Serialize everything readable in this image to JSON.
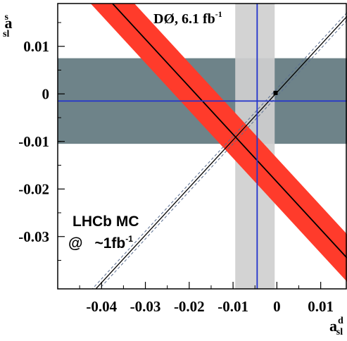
{
  "chart_data": {
    "type": "scatter",
    "title": "DØ, 6.1 fb",
    "title_sup": "-1",
    "ylabel": "a",
    "ylabel_sup": "s",
    "ylabel_sub": "sl",
    "xlabel": "a",
    "xlabel_sup": "d",
    "xlabel_sub": "sl",
    "xlim": [
      -0.05,
      0.016
    ],
    "ylim": [
      -0.041,
      0.019
    ],
    "x_ticks": [
      -0.04,
      -0.03,
      -0.02,
      -0.01,
      0,
      0.01
    ],
    "x_tick_labels": [
      "-0.04",
      "-0.03",
      "-0.02",
      "-0.01",
      "0",
      "0.01"
    ],
    "y_ticks": [
      0.01,
      0,
      -0.01,
      -0.02,
      -0.03
    ],
    "y_tick_labels": [
      "0.01",
      "0",
      "-0.01",
      "-0.02",
      "-0.03"
    ],
    "annotation": {
      "line1": "LHCb MC",
      "line2_prefix": "@",
      "line2_value": "~1fb",
      "line2_sup": "-1"
    },
    "colors": {
      "red_band": "#ff3b2b",
      "horizontal_band": "#6e8389",
      "vertical_band": "#cfcfcf",
      "blue_lines": "#2233cc",
      "slate_diag": "#5a6e90"
    },
    "horizontal_band": {
      "center": -0.0015,
      "low": -0.0105,
      "high": 0.0075
    },
    "vertical_band": {
      "center": -0.0045,
      "low": -0.0095,
      "high": -0.0005
    },
    "diagonal_band": {
      "slope": -1.0,
      "intercept": -0.0185,
      "half_width_y": 0.005
    },
    "sm_line": {
      "slope": 1.0,
      "intercept": 0.0003,
      "band_half_width": 0.0008
    },
    "point": {
      "x": -0.0003,
      "y": 0.0002
    }
  }
}
